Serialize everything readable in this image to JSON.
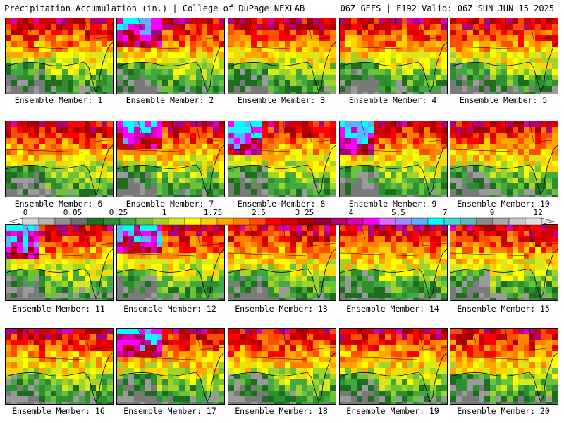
{
  "header": {
    "left": "Precipitation Accumulation (in.) | College of DuPage NEXLAB",
    "right": "06Z GEFS | F192 Valid: 06Z SUN JUN 15 2025"
  },
  "label_prefix": "Ensemble Member: ",
  "members": [
    {
      "id": "1"
    },
    {
      "id": "2"
    },
    {
      "id": "3"
    },
    {
      "id": "4"
    },
    {
      "id": "5"
    },
    {
      "id": "6"
    },
    {
      "id": "7"
    },
    {
      "id": "8"
    },
    {
      "id": "9"
    },
    {
      "id": "10"
    },
    {
      "id": "11"
    },
    {
      "id": "12"
    },
    {
      "id": "13"
    },
    {
      "id": "14"
    },
    {
      "id": "15"
    },
    {
      "id": "16"
    },
    {
      "id": "17"
    },
    {
      "id": "18"
    },
    {
      "id": "19"
    },
    {
      "id": "20"
    }
  ],
  "legend": {
    "tick_labels": [
      "0",
      "0.05",
      "0.25",
      "1",
      "1.75",
      "2.5",
      "3.25",
      "4",
      "5.5",
      "7",
      "9",
      "12"
    ],
    "colors": [
      "#d4d4d4",
      "#b4b4b4",
      "#8f8f8f",
      "#6e6e6e",
      "#1f6e1f",
      "#2f8f2f",
      "#42a842",
      "#6cc23a",
      "#a0d42a",
      "#d8e81a",
      "#ffff00",
      "#ffd200",
      "#ffa500",
      "#ff7f00",
      "#ff4d00",
      "#ff0000",
      "#d40000",
      "#a80000",
      "#8b0030",
      "#b0007a",
      "#d800b4",
      "#ff00ff",
      "#d070ff",
      "#9c8cff",
      "#5fb0ff",
      "#00ffff",
      "#40d8d8",
      "#60b8b8",
      "#8c8c8c",
      "#a8a8a8",
      "#c8c8c8",
      "#e0e0e0"
    ]
  }
}
